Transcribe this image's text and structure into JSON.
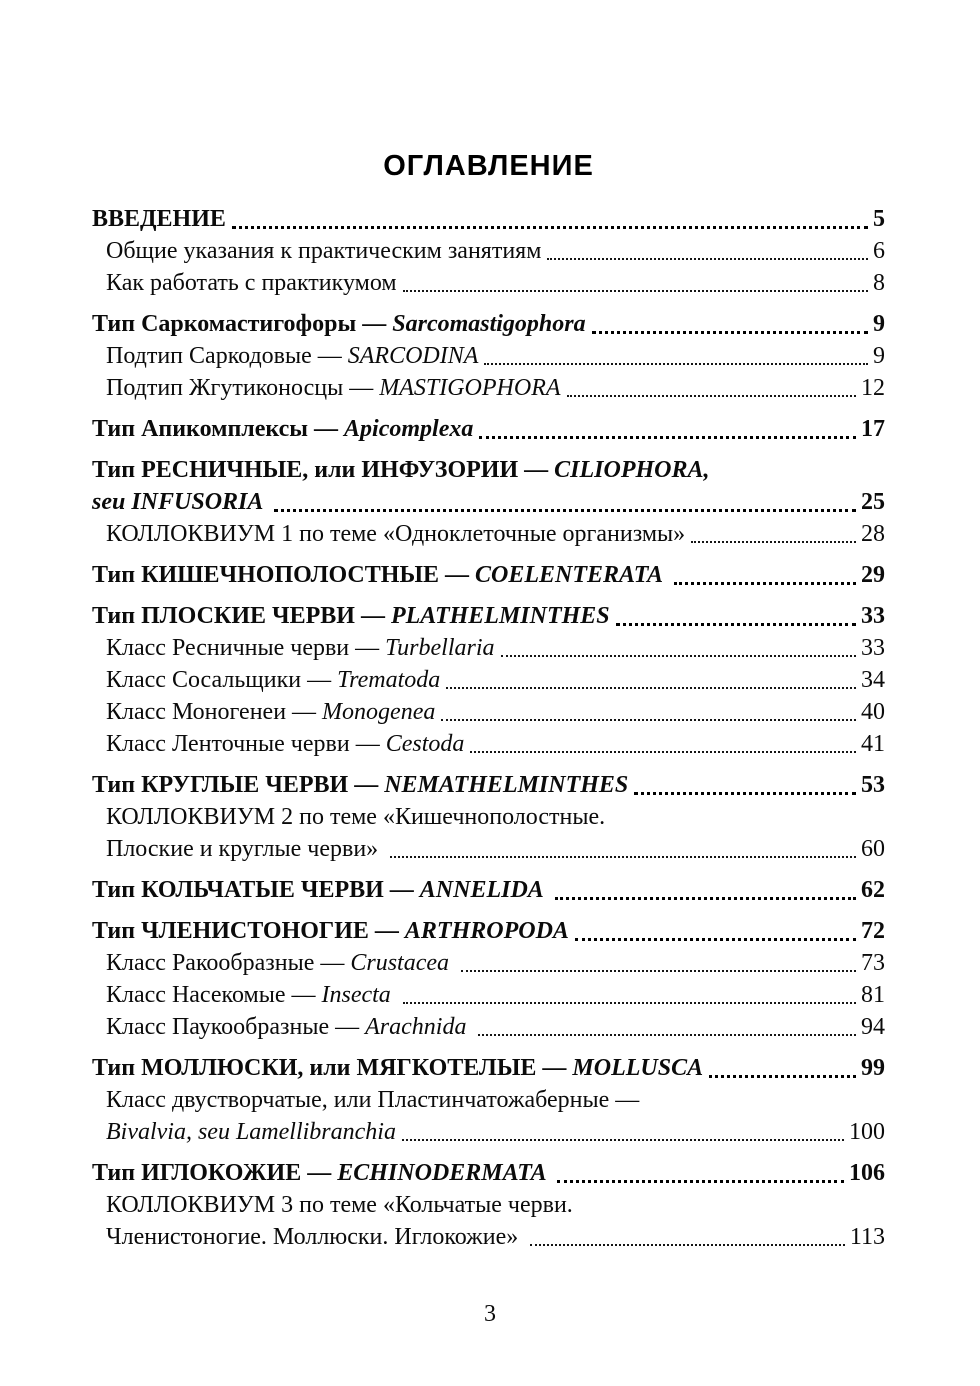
{
  "document": {
    "title": "ОГЛАВЛЕНИЕ",
    "footer_page_number": "3"
  },
  "toc": {
    "entries": [
      {
        "level": 0,
        "bold": true,
        "lines": [
          {
            "runs": [
              {
                "t": "ВВЕДЕНИЕ"
              }
            ],
            "page": "5"
          }
        ]
      },
      {
        "level": 1,
        "bold": false,
        "lines": [
          {
            "runs": [
              {
                "t": "Общие указания к практическим занятиям"
              }
            ],
            "page": "6"
          }
        ]
      },
      {
        "level": 1,
        "bold": false,
        "lines": [
          {
            "runs": [
              {
                "t": "Как работать с практикумом"
              }
            ],
            "page": "8"
          }
        ]
      },
      {
        "level": 0,
        "bold": true,
        "lines": [
          {
            "runs": [
              {
                "t": "Тип Саркомастигофоры — "
              },
              {
                "t": "Sarcomastigophora",
                "i": true
              }
            ],
            "page": "9"
          }
        ]
      },
      {
        "level": 1,
        "bold": false,
        "lines": [
          {
            "runs": [
              {
                "t": "Подтип Саркодовые — "
              },
              {
                "t": "SARCODINA",
                "i": true
              }
            ],
            "page": "9"
          }
        ]
      },
      {
        "level": 1,
        "bold": false,
        "lines": [
          {
            "runs": [
              {
                "t": "Подтип Жгутиконосцы — "
              },
              {
                "t": "MASTIGOPHORA",
                "i": true
              }
            ],
            "page": "12"
          }
        ]
      },
      {
        "level": 0,
        "bold": true,
        "lines": [
          {
            "runs": [
              {
                "t": "Тип Апикомплексы — "
              },
              {
                "t": "Apicomplexa",
                "i": true
              }
            ],
            "page": "17"
          }
        ]
      },
      {
        "level": 0,
        "bold": true,
        "lines": [
          {
            "runs": [
              {
                "t": "Тип РЕСНИЧНЫЕ, или ИНФУЗОРИИ — "
              },
              {
                "t": "CILIOPHORA,",
                "i": true
              }
            ]
          },
          {
            "runs": [
              {
                "t": "seu INFUSORIA ",
                "i": true
              }
            ],
            "page": "25"
          }
        ]
      },
      {
        "level": 1,
        "bold": false,
        "lines": [
          {
            "runs": [
              {
                "t": "КОЛЛОКВИУМ 1 по теме «Одноклеточные организмы»"
              }
            ],
            "page": "28"
          }
        ]
      },
      {
        "level": 0,
        "bold": true,
        "lines": [
          {
            "runs": [
              {
                "t": "Тип КИШЕЧНОПОЛОСТНЫЕ — "
              },
              {
                "t": "COELENTERATA ",
                "i": true
              }
            ],
            "page": "29"
          }
        ]
      },
      {
        "level": 0,
        "bold": true,
        "lines": [
          {
            "runs": [
              {
                "t": "Тип ПЛОСКИЕ ЧЕРВИ — "
              },
              {
                "t": "PLATHELMINTHES",
                "i": true
              }
            ],
            "page": "33"
          }
        ]
      },
      {
        "level": 1,
        "bold": false,
        "lines": [
          {
            "runs": [
              {
                "t": "Класс Ресничные черви — "
              },
              {
                "t": "Turbellaria",
                "i": true
              }
            ],
            "page": "33"
          }
        ]
      },
      {
        "level": 1,
        "bold": false,
        "lines": [
          {
            "runs": [
              {
                "t": "Класс Сосальщики — "
              },
              {
                "t": "Trematoda",
                "i": true
              }
            ],
            "page": "34"
          }
        ]
      },
      {
        "level": 1,
        "bold": false,
        "lines": [
          {
            "runs": [
              {
                "t": "Класс Моногенеи — "
              },
              {
                "t": "Monogenea",
                "i": true
              }
            ],
            "page": "40"
          }
        ]
      },
      {
        "level": 1,
        "bold": false,
        "lines": [
          {
            "runs": [
              {
                "t": "Класс Ленточные черви — "
              },
              {
                "t": "Cestoda",
                "i": true
              }
            ],
            "page": "41"
          }
        ]
      },
      {
        "level": 0,
        "bold": true,
        "lines": [
          {
            "runs": [
              {
                "t": "Тип КРУГЛЫЕ ЧЕРВИ — "
              },
              {
                "t": "NEMATHELMINTHES",
                "i": true
              }
            ],
            "page": "53"
          }
        ]
      },
      {
        "level": 1,
        "bold": false,
        "lines": [
          {
            "runs": [
              {
                "t": "КОЛЛОКВИУМ 2 по теме «Кишечнополостные."
              }
            ]
          },
          {
            "runs": [
              {
                "t": "Плоские и круглые черви» "
              }
            ],
            "page": "60"
          }
        ]
      },
      {
        "level": 0,
        "bold": true,
        "lines": [
          {
            "runs": [
              {
                "t": "Тип КОЛЬЧАТЫЕ ЧЕРВИ — "
              },
              {
                "t": "ANNELIDA ",
                "i": true
              }
            ],
            "page": "62"
          }
        ]
      },
      {
        "level": 0,
        "bold": true,
        "lines": [
          {
            "runs": [
              {
                "t": "Тип ЧЛЕНИСТОНОГИЕ — "
              },
              {
                "t": "ARTHROPODA",
                "i": true
              }
            ],
            "page": "72"
          }
        ]
      },
      {
        "level": 1,
        "bold": false,
        "lines": [
          {
            "runs": [
              {
                "t": "Класс Ракообразные — "
              },
              {
                "t": "Crustacea ",
                "i": true
              }
            ],
            "page": "73"
          }
        ]
      },
      {
        "level": 1,
        "bold": false,
        "lines": [
          {
            "runs": [
              {
                "t": "Класс Насекомые — "
              },
              {
                "t": "Insecta ",
                "i": true
              }
            ],
            "page": "81"
          }
        ]
      },
      {
        "level": 1,
        "bold": false,
        "lines": [
          {
            "runs": [
              {
                "t": "Класс Паукообразные — "
              },
              {
                "t": "Arachnida ",
                "i": true
              }
            ],
            "page": "94"
          }
        ]
      },
      {
        "level": 0,
        "bold": true,
        "lines": [
          {
            "runs": [
              {
                "t": "Тип МОЛЛЮСКИ, или МЯГКОТЕЛЫЕ — "
              },
              {
                "t": "MOLLUSCA",
                "i": true
              }
            ],
            "page": "99"
          }
        ]
      },
      {
        "level": 1,
        "bold": false,
        "lines": [
          {
            "runs": [
              {
                "t": "Класс двустворчатые, или Пластинчатожаберные —"
              }
            ]
          },
          {
            "runs": [
              {
                "t": "Bivalvia, seu Lamellibranchia",
                "i": true
              }
            ],
            "page": "100"
          }
        ]
      },
      {
        "level": 0,
        "bold": true,
        "lines": [
          {
            "runs": [
              {
                "t": "Тип ИГЛОКОЖИЕ — "
              },
              {
                "t": "ECHINODERMATA ",
                "i": true
              }
            ],
            "page": "106"
          }
        ]
      },
      {
        "level": 1,
        "bold": false,
        "lines": [
          {
            "runs": [
              {
                "t": "КОЛЛОКВИУМ 3 по теме «Кольчатые черви."
              }
            ]
          },
          {
            "runs": [
              {
                "t": "Членистоногие. Моллюски. Иглокожие» "
              }
            ],
            "page": "113"
          }
        ]
      }
    ]
  }
}
